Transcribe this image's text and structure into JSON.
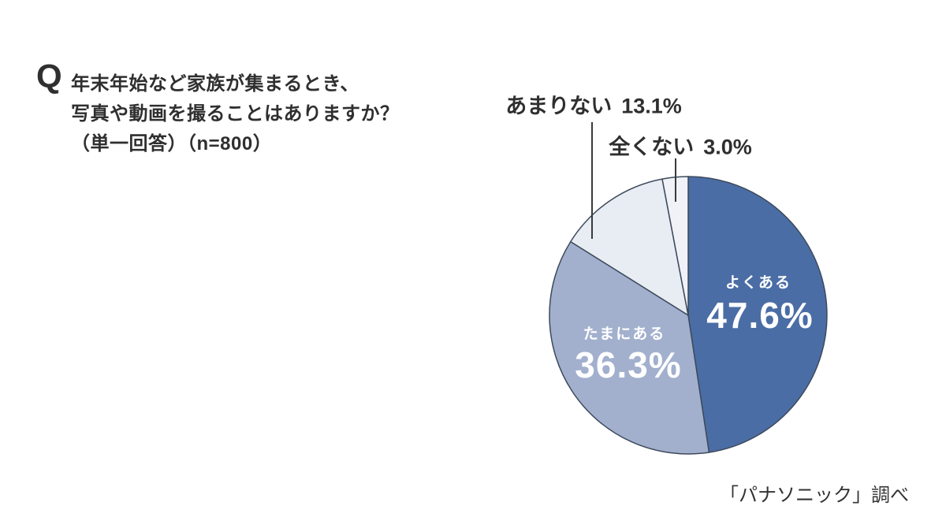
{
  "question": {
    "q_mark": "Q",
    "lines": [
      "年末年始など家族が集まるとき、",
      "写真や動画を撮ることはありますか？",
      "（単一回答）（n=800）"
    ]
  },
  "chart_data": {
    "type": "pie",
    "title": "年末年始など家族が集まるとき、写真や動画を撮ることはありますか？",
    "sample_size": "n=800",
    "start_from": "top",
    "direction": "clockwise",
    "outline_color": "#3D4A5C",
    "segments": [
      {
        "label": "よくある",
        "value": 47.6,
        "display": "47.6%",
        "color": "#4B6DA5",
        "text_color": "#ffffff",
        "label_position": "inside"
      },
      {
        "label": "たまにある",
        "value": 36.3,
        "display": "36.3%",
        "color": "#A2B0CE",
        "text_color": "#ffffff",
        "label_position": "inside"
      },
      {
        "label": "あまりない",
        "value": 13.1,
        "display": "13.1%",
        "color": "#E8ECF3",
        "text_color": "#2f2f2f",
        "label_position": "outside"
      },
      {
        "label": "全くない",
        "value": 3.0,
        "display": "3.0%",
        "color": "#F0F2F7",
        "text_color": "#2f2f2f",
        "label_position": "outside"
      }
    ]
  },
  "source": "「パナソニック」調べ"
}
